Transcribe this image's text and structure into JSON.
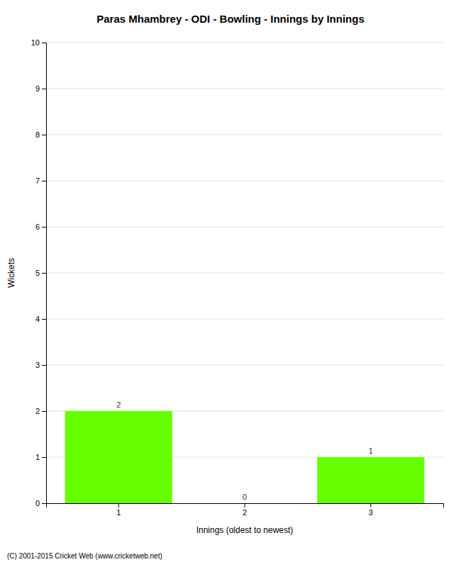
{
  "chart_data": {
    "type": "bar",
    "title": "Paras Mhambrey - ODI - Bowling - Innings by Innings",
    "x_label": "Innings (oldest to newest)",
    "y_label": "Wickets",
    "categories": [
      1,
      2,
      3
    ],
    "values": [
      2,
      0,
      1
    ],
    "color": "#66ff00",
    "ylim": [
      0,
      10
    ],
    "yticks": [
      0,
      1,
      2,
      3,
      4,
      5,
      6,
      7,
      8,
      9,
      10
    ],
    "grid": true,
    "data_labels": true,
    "annotations": [
      "(C) 2001-2015 Cricket Web (www.cricketweb.net)"
    ]
  }
}
